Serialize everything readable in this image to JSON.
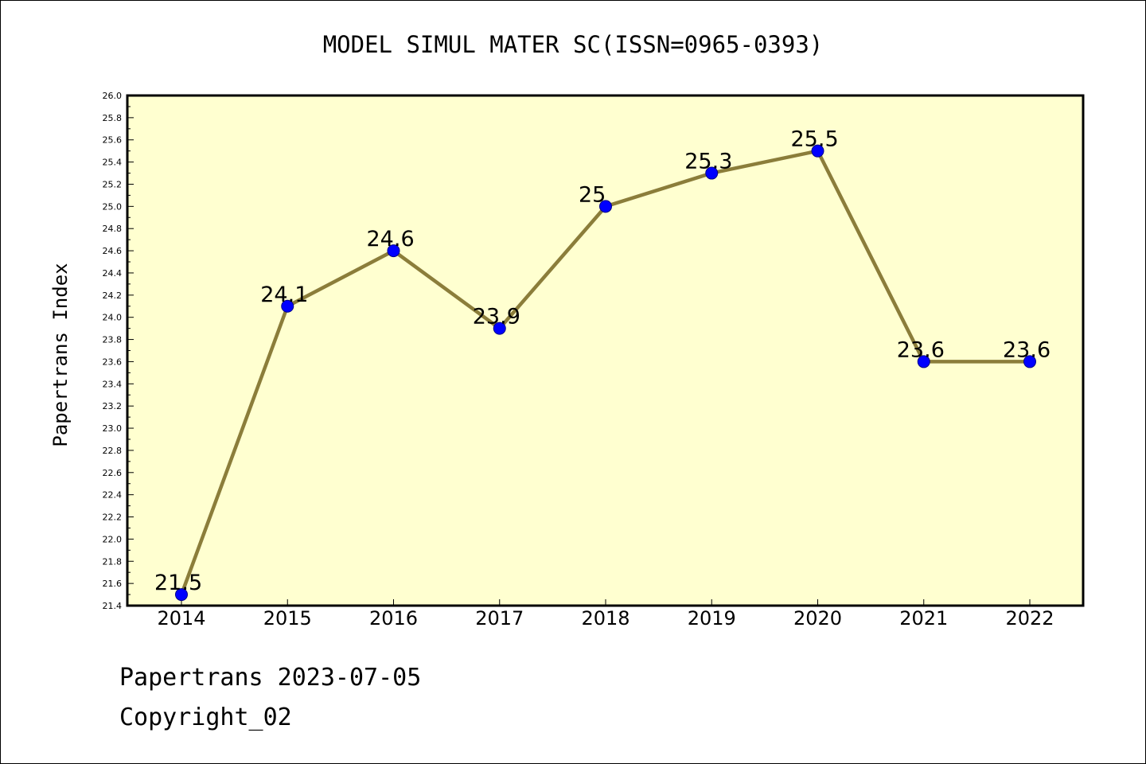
{
  "chart_data": {
    "type": "line",
    "title": "MODEL SIMUL MATER SC(ISSN=0965-0393)",
    "xlabel": "",
    "ylabel": "Papertrans Index",
    "categories": [
      "2014",
      "2015",
      "2016",
      "2017",
      "2018",
      "2019",
      "2020",
      "2021",
      "2022"
    ],
    "values": [
      21.5,
      24.1,
      24.6,
      23.9,
      25,
      25.3,
      25.5,
      23.6,
      23.6
    ],
    "point_labels": [
      "21.5",
      "24.1",
      "24.6",
      "23.9",
      "25",
      "25.3",
      "25.5",
      "23.6",
      "23.6"
    ],
    "ylim": [
      21.4,
      26.0
    ],
    "yticks": [
      "21.4",
      "21.6",
      "21.8",
      "22.0",
      "22.2",
      "22.4",
      "22.6",
      "22.8",
      "23.0",
      "23.2",
      "23.4",
      "23.6",
      "23.8",
      "24.0",
      "24.2",
      "24.4",
      "24.6",
      "24.8",
      "25.0",
      "25.2",
      "25.4",
      "25.6",
      "25.8",
      "26.0"
    ],
    "grid": false,
    "legend": "none",
    "colors": {
      "plot_background": "#ffffd0",
      "line": "#8b7d3a",
      "marker": "#0000ff",
      "marker_edge": "#00008b"
    }
  },
  "footer": {
    "date_line": "Papertrans 2023-07-05",
    "copyright_line": "Copyright_02"
  }
}
